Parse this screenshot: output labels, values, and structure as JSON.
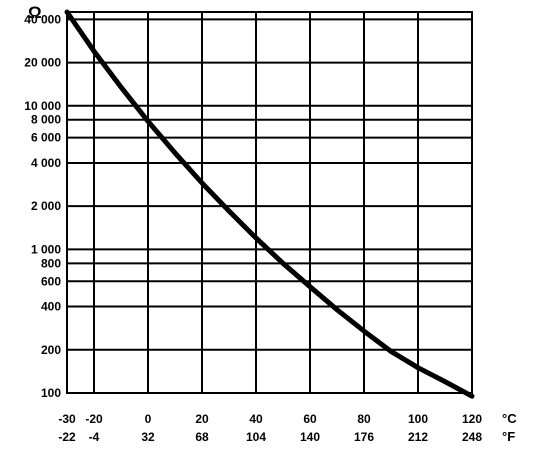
{
  "chart_data": {
    "type": "line",
    "title": "",
    "y_unit_symbol": "Ω",
    "y_scale": "log",
    "ylim": [
      100,
      45000
    ],
    "xlim": [
      -30,
      120
    ],
    "grid": true,
    "x_ticks_celsius": [
      -30,
      -20,
      0,
      20,
      40,
      60,
      80,
      100,
      120
    ],
    "x_ticks_fahrenheit": [
      -22,
      -4,
      32,
      68,
      104,
      140,
      176,
      212,
      248
    ],
    "x_unit_celsius": "°C",
    "x_unit_fahrenheit": "°F",
    "y_ticks": [
      {
        "value": 100,
        "label": "100"
      },
      {
        "value": 200,
        "label": "200"
      },
      {
        "value": 400,
        "label": "400"
      },
      {
        "value": 600,
        "label": "600"
      },
      {
        "value": 800,
        "label": "800"
      },
      {
        "value": 1000,
        "label": "1 000"
      },
      {
        "value": 2000,
        "label": "2 000"
      },
      {
        "value": 4000,
        "label": "4 000"
      },
      {
        "value": 6000,
        "label": "6 000"
      },
      {
        "value": 8000,
        "label": "8 000"
      },
      {
        "value": 10000,
        "label": "10 000"
      },
      {
        "value": 20000,
        "label": "20 000"
      },
      {
        "value": 40000,
        "label": "40 000"
      }
    ],
    "series": [
      {
        "x": [
          -30,
          -20,
          -10,
          0,
          10,
          20,
          30,
          40,
          50,
          60,
          70,
          80,
          90,
          100,
          110,
          120
        ],
        "y": [
          45000,
          24000,
          13500,
          7800,
          4700,
          2900,
          1850,
          1200,
          800,
          550,
          380,
          270,
          195,
          150,
          120,
          95
        ]
      }
    ]
  }
}
